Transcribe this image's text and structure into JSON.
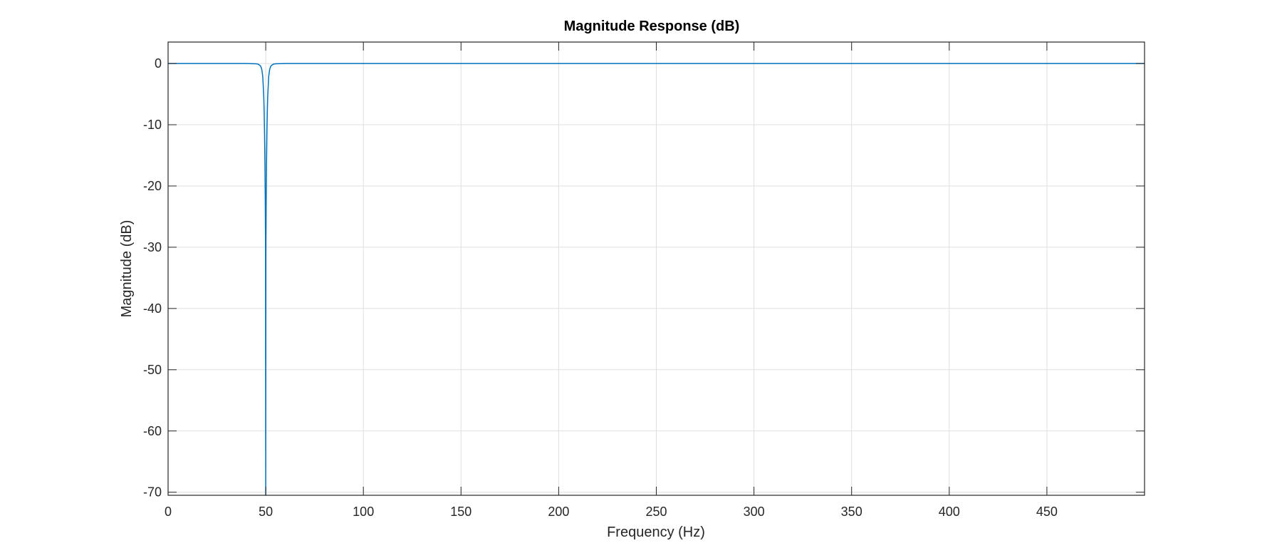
{
  "chart_data": {
    "type": "line",
    "title": "Magnitude Response (dB)",
    "xlabel": "Frequency (Hz)",
    "ylabel": "Magnitude (dB)",
    "xlim": [
      0,
      500
    ],
    "ylim": [
      -70.5,
      3.5
    ],
    "xticks": [
      0,
      50,
      100,
      150,
      200,
      250,
      300,
      350,
      400,
      450
    ],
    "yticks": [
      0,
      -10,
      -20,
      -30,
      -40,
      -50,
      -60,
      -70
    ],
    "grid": true,
    "legend": "none",
    "series": [
      {
        "color": "#0072bd",
        "x": [
          0,
          40,
          45,
          46,
          47,
          47.5,
          48,
          48.5,
          49,
          49.2,
          49.4,
          49.6,
          49.8,
          49.9,
          50,
          50.1,
          50.2,
          50.4,
          50.6,
          50.8,
          51,
          51.5,
          52,
          52.5,
          53,
          54,
          55,
          60,
          100,
          150,
          200,
          250,
          300,
          350,
          400,
          450,
          500
        ],
        "y": [
          0,
          0,
          -0.05,
          -0.1,
          -0.3,
          -0.5,
          -1.0,
          -2.2,
          -5.5,
          -8.0,
          -11.5,
          -16.5,
          -24,
          -30,
          -70.5,
          -30,
          -24,
          -16.5,
          -11.5,
          -8.0,
          -5.5,
          -2.2,
          -1.0,
          -0.5,
          -0.3,
          -0.1,
          -0.05,
          0,
          0,
          0,
          0,
          0,
          0,
          0,
          0,
          0,
          0
        ]
      }
    ]
  }
}
